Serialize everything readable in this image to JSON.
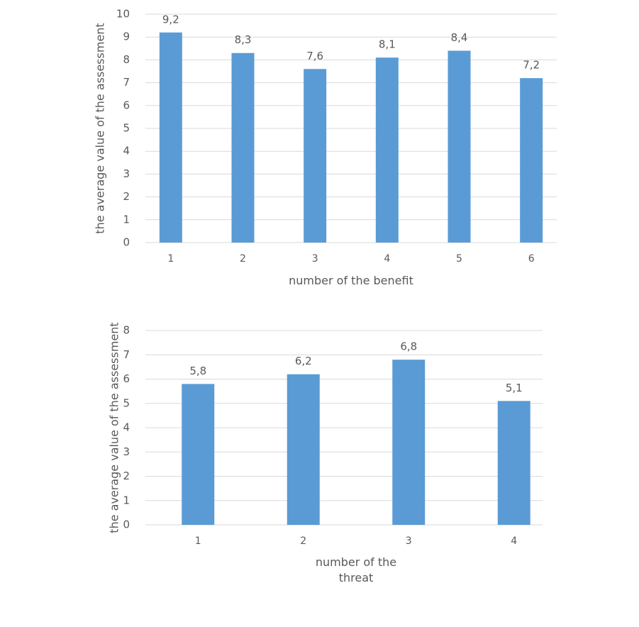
{
  "chart_data": [
    {
      "type": "bar",
      "categories": [
        "1",
        "2",
        "3",
        "4",
        "5",
        "6"
      ],
      "values": [
        9.2,
        8.3,
        7.6,
        8.1,
        8.4,
        7.2
      ],
      "value_labels": [
        "9,2",
        "8,3",
        "7,6",
        "8,1",
        "8,4",
        "7,2"
      ],
      "color": "#5b9bd5",
      "ylim": [
        0,
        10
      ],
      "yticks": [
        0,
        1,
        2,
        3,
        4,
        5,
        6,
        7,
        8,
        9,
        10
      ],
      "grid": true,
      "x_label": "number of the benefit",
      "y_label": "the average value of the assessment"
    },
    {
      "type": "bar",
      "categories": [
        "1",
        "2",
        "3",
        "4"
      ],
      "values": [
        5.8,
        6.2,
        6.8,
        5.1
      ],
      "value_labels": [
        "5,8",
        "6,2",
        "6,8",
        "5,1"
      ],
      "color": "#5b9bd5",
      "ylim": [
        0,
        8
      ],
      "yticks": [
        0,
        1,
        2,
        3,
        4,
        5,
        6,
        7,
        8
      ],
      "grid": true,
      "x_label": "number of the threat",
      "y_label": "the average value of the assessment"
    }
  ]
}
